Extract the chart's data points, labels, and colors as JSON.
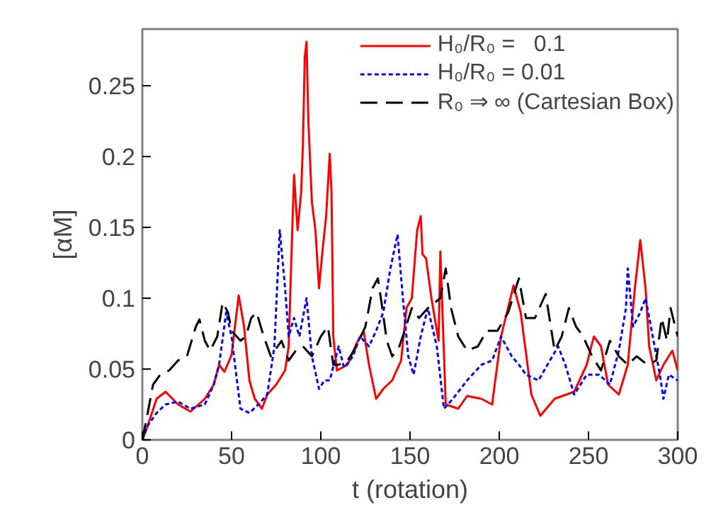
{
  "chart_data": {
    "type": "line",
    "xlabel": "t (rotation)",
    "ylabel": "[αM]",
    "xlim": [
      0,
      300
    ],
    "xticks": [
      0,
      50,
      100,
      150,
      200,
      250,
      300
    ],
    "ylim": [
      0,
      0.29
    ],
    "yticks": [
      0,
      0.05,
      0.1,
      0.15,
      0.2,
      0.25
    ],
    "grid": false,
    "legend": "top right",
    "series": [
      {
        "name": "H₀/R₀ =   0.1",
        "color": "#ff0000",
        "line_style": "solid",
        "x": [
          0,
          3,
          8,
          13,
          20,
          27,
          35,
          40,
          43,
          46,
          50,
          54,
          57,
          60,
          63,
          67,
          70,
          75,
          80,
          82,
          84,
          85,
          87,
          89,
          90,
          91,
          92,
          93,
          95,
          97,
          99,
          101,
          103,
          105,
          106,
          107,
          109,
          115,
          120,
          124,
          127,
          131,
          135,
          140,
          145,
          148,
          151,
          154,
          156,
          157,
          159,
          162,
          166,
          167,
          170,
          177,
          182,
          190,
          196,
          201,
          208,
          212,
          218,
          223,
          231,
          242,
          249,
          253,
          257,
          261,
          267,
          272,
          276,
          279,
          282,
          284,
          288,
          292,
          297,
          300
        ],
        "values": [
          0,
          0.01,
          0.029,
          0.034,
          0.025,
          0.02,
          0.029,
          0.039,
          0.053,
          0.048,
          0.06,
          0.102,
          0.08,
          0.042,
          0.029,
          0.022,
          0.032,
          0.039,
          0.049,
          0.066,
          0.148,
          0.187,
          0.148,
          0.175,
          0.209,
          0.27,
          0.281,
          0.226,
          0.168,
          0.148,
          0.107,
          0.134,
          0.158,
          0.202,
          0.175,
          0.073,
          0.049,
          0.053,
          0.068,
          0.077,
          0.053,
          0.029,
          0.036,
          0.042,
          0.056,
          0.093,
          0.1,
          0.148,
          0.158,
          0.131,
          0.128,
          0.1,
          0.07,
          0.133,
          0.025,
          0.022,
          0.031,
          0.029,
          0.025,
          0.073,
          0.109,
          0.09,
          0.032,
          0.017,
          0.029,
          0.034,
          0.053,
          0.073,
          0.066,
          0.039,
          0.032,
          0.053,
          0.107,
          0.141,
          0.107,
          0.066,
          0.042,
          0.053,
          0.063,
          0.049
        ]
      },
      {
        "name": "H₀/R₀ = 0.01",
        "color": "#0000ff",
        "line_style": "dotted",
        "x": [
          0,
          3,
          8,
          13,
          20,
          27,
          35,
          40,
          43,
          47,
          50,
          53,
          55,
          60,
          65,
          70,
          74,
          77,
          80,
          82,
          85,
          88,
          92,
          95,
          99,
          102,
          105,
          110,
          113,
          118,
          122,
          127,
          131,
          135,
          139,
          143,
          146,
          149,
          152,
          156,
          160,
          165,
          169,
          174,
          182,
          190,
          196,
          201,
          207,
          211,
          215,
          222,
          227,
          233,
          237,
          242,
          249,
          256,
          262,
          267,
          271,
          272,
          275,
          279,
          282,
          286,
          290,
          292,
          295,
          300
        ],
        "values": [
          0,
          0.01,
          0.019,
          0.025,
          0.027,
          0.022,
          0.025,
          0.039,
          0.053,
          0.09,
          0.073,
          0.042,
          0.022,
          0.019,
          0.025,
          0.032,
          0.066,
          0.148,
          0.107,
          0.073,
          0.086,
          0.073,
          0.1,
          0.059,
          0.036,
          0.042,
          0.042,
          0.066,
          0.051,
          0.059,
          0.073,
          0.066,
          0.077,
          0.09,
          0.121,
          0.145,
          0.1,
          0.059,
          0.046,
          0.073,
          0.093,
          0.066,
          0.022,
          0.029,
          0.042,
          0.053,
          0.056,
          0.073,
          0.059,
          0.053,
          0.046,
          0.042,
          0.053,
          0.066,
          0.053,
          0.032,
          0.046,
          0.046,
          0.039,
          0.063,
          0.093,
          0.121,
          0.08,
          0.09,
          0.1,
          0.073,
          0.046,
          0.029,
          0.046,
          0.042
        ]
      },
      {
        "name": "R₀ ⇒ ∞ (Cartesian Box)",
        "color": "#000000",
        "line_style": "dashed",
        "x": [
          0,
          3,
          6,
          10,
          15,
          20,
          25,
          30,
          32,
          35,
          38,
          42,
          45,
          48,
          50,
          55,
          58,
          61,
          64,
          68,
          72,
          78,
          82,
          86,
          90,
          95,
          100,
          104,
          107,
          110,
          115,
          120,
          125,
          129,
          132,
          134,
          137,
          140,
          144,
          147,
          151,
          155,
          160,
          167,
          170,
          173,
          177,
          182,
          188,
          193,
          199,
          205,
          211,
          215,
          220,
          226,
          231,
          235,
          239,
          243,
          247,
          252,
          257,
          262,
          267,
          272,
          277,
          283,
          288,
          291,
          294,
          296,
          300
        ],
        "values": [
          0,
          0.019,
          0.039,
          0.046,
          0.049,
          0.056,
          0.059,
          0.08,
          0.085,
          0.07,
          0.063,
          0.073,
          0.097,
          0.09,
          0.077,
          0.07,
          0.073,
          0.086,
          0.09,
          0.073,
          0.059,
          0.07,
          0.056,
          0.063,
          0.066,
          0.059,
          0.073,
          0.08,
          0.053,
          0.053,
          0.056,
          0.066,
          0.08,
          0.107,
          0.114,
          0.097,
          0.07,
          0.059,
          0.066,
          0.077,
          0.093,
          0.086,
          0.093,
          0.1,
          0.121,
          0.093,
          0.073,
          0.063,
          0.066,
          0.077,
          0.077,
          0.09,
          0.114,
          0.086,
          0.086,
          0.103,
          0.063,
          0.073,
          0.093,
          0.08,
          0.073,
          0.059,
          0.049,
          0.07,
          0.059,
          0.053,
          0.059,
          0.053,
          0.056,
          0.086,
          0.07,
          0.093,
          0.073
        ]
      }
    ]
  }
}
